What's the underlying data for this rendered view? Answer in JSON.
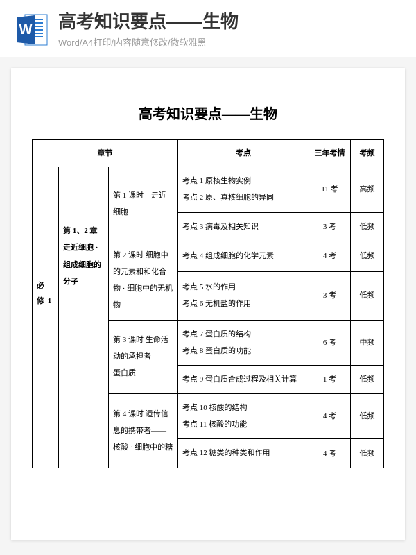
{
  "header": {
    "title": "高考知识要点——生物",
    "subtitle": "Word/A4打印/内容随意修改/微软雅黑"
  },
  "icon": {
    "bg_outer": "#1e5aa8",
    "bg_inner": "#2b7cd3",
    "letter": "W"
  },
  "doc": {
    "title": "高考知识要点——生物",
    "columns": {
      "chapter": "章节",
      "point": "考点",
      "years": "三年考情",
      "freq": "考频"
    },
    "book": "必 修 1",
    "section": "第 1、2 章  走近细胞 · 组成细胞的分子",
    "rows": [
      {
        "lesson": "第 1 课时　走近细胞",
        "lesson_rowspan": 2,
        "point": "考点 1  原核生物实例\n考点 2  原、真核细胞的异同",
        "years": "11 考",
        "freq": "高频"
      },
      {
        "point": "考点 3  病毒及相关知识",
        "years": "3 考",
        "freq": "低频"
      },
      {
        "lesson": "第 2 课时 细胞中的元素和和化合物 · 细胞中的无机物",
        "lesson_rowspan": 2,
        "point": "考点 4  组成细胞的化学元素",
        "years": "4 考",
        "freq": "低频"
      },
      {
        "point": "考点 5  水的作用\n考点 6  无机盐的作用",
        "years": "3 考",
        "freq": "低频"
      },
      {
        "lesson": "第 3 课时  生命活动的承担者——蛋白质",
        "lesson_rowspan": 2,
        "point": "考点 7  蛋白质的结构\n考点 8  蛋白质的功能",
        "years": "6 考",
        "freq": "中频"
      },
      {
        "point": "考点 9  蛋白质合成过程及相关计算",
        "years": "1 考",
        "freq": "低频"
      },
      {
        "lesson": "第 4 课时  遗传信息的携带者——核酸 · 细胞中的糖",
        "lesson_rowspan": 2,
        "point": "考点 10  核酸的结构\n考点 11  核酸的功能",
        "years": "4 考",
        "freq": "低频"
      },
      {
        "point": "考点 12  糖类的种类和作用",
        "years": "4 考",
        "freq": "低频"
      }
    ]
  }
}
